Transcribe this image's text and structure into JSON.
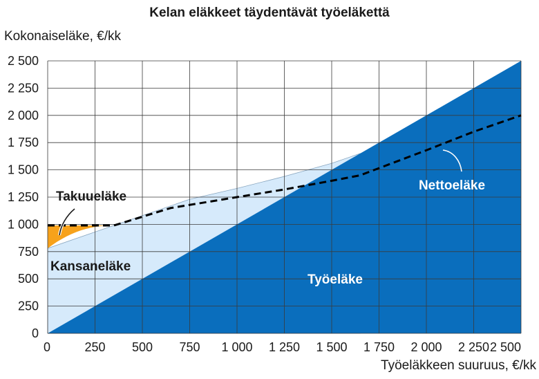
{
  "chart_data": {
    "type": "area",
    "title": "Kelan eläkkeet täydentävät työeläkettä",
    "xlabel": "Työeläkkeen suuruus, €/kk",
    "ylabel": "Kokonaiseläke, €/kk",
    "xlim": [
      0,
      2500
    ],
    "ylim": [
      0,
      2500
    ],
    "x_ticks": [
      "0",
      "250",
      "500",
      "750",
      "1 000",
      "1 250",
      "1 500",
      "1 750",
      "2 000",
      "2 250",
      "2 500"
    ],
    "y_ticks": [
      "0",
      "250",
      "500",
      "750",
      "1 000",
      "1 250",
      "1 500",
      "1 750",
      "2 000",
      "2 250",
      "2 500"
    ],
    "grid": true,
    "series": [
      {
        "name": "Työeläke",
        "color": "#0a6ebd",
        "x": [
          0,
          2500
        ],
        "y": [
          0,
          2500
        ]
      },
      {
        "name": "Kansaneläke",
        "color": "#d6eafb",
        "x": [
          0,
          250,
          500,
          750,
          1000,
          1250,
          1500,
          1650
        ],
        "y": [
          780,
          930,
          1080,
          1230,
          1330,
          1440,
          1560,
          1650
        ]
      },
      {
        "name": "Takuueläke",
        "color": "#f7a21b",
        "x": [
          0,
          50,
          100,
          150,
          200,
          250,
          300,
          350
        ],
        "y": [
          990,
          990,
          990,
          990,
          990,
          990,
          990,
          990
        ]
      },
      {
        "name": "Nettoeläke",
        "color": "#000000",
        "style": "dashed",
        "x": [
          0,
          350,
          650,
          1000,
          1250,
          1500,
          1650,
          2000,
          2250,
          2500
        ],
        "y": [
          990,
          990,
          1150,
          1250,
          1320,
          1400,
          1450,
          1680,
          1850,
          2000
        ]
      }
    ],
    "annotations": [
      {
        "text": "Takuueläke",
        "color": "#1a1a1a"
      },
      {
        "text": "Kansaneläke",
        "color": "#1a1a1a"
      },
      {
        "text": "Työeläke",
        "color": "#ffffff"
      },
      {
        "text": "Nettoeläke",
        "color": "#ffffff"
      }
    ]
  }
}
